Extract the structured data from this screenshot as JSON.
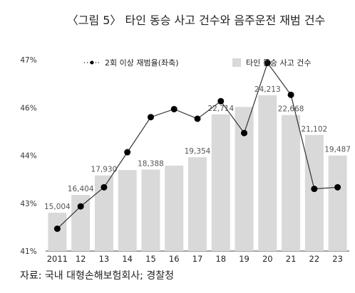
{
  "chart_data": {
    "type": "bar",
    "title": "〈그림 5〉 타인 동승 사고 건수와 음주운전 재범 건수",
    "source": "자료: 국내 대형손해보험회사; 경찰청",
    "categories": [
      "2011",
      "12",
      "13",
      "14",
      "15",
      "16",
      "17",
      "18",
      "19",
      "20",
      "21",
      "22",
      "23"
    ],
    "y_left": {
      "ticks": [
        "41%",
        "43%",
        "44%",
        "46%",
        "47%"
      ],
      "tick_values": [
        41,
        42.5,
        44,
        45.5,
        47
      ],
      "range": [
        41,
        47
      ]
    },
    "bar_axis_range": [
      12000,
      27000
    ],
    "series": [
      {
        "name": "타인 동승 사고 건수",
        "type": "bar",
        "color": "#d9d9d9",
        "values": [
          15004,
          16404,
          17930,
          18350,
          18388,
          18700,
          19354,
          22714,
          23300,
          24213,
          22668,
          21102,
          19487
        ],
        "labels": [
          "15,004",
          "16,404",
          "17,930",
          "",
          "18,388",
          "",
          "19,354",
          "22,714",
          "",
          "24,213",
          "22,668",
          "21,102",
          "19,487"
        ]
      },
      {
        "name": "2회 이상 재범율(좌축)",
        "type": "line",
        "color": "#000000",
        "values": [
          41.7,
          42.4,
          43.0,
          44.1,
          45.2,
          45.45,
          45.15,
          45.7,
          44.7,
          46.9,
          45.9,
          42.95,
          43.0
        ]
      }
    ],
    "legend_position": "top",
    "grid": false
  }
}
